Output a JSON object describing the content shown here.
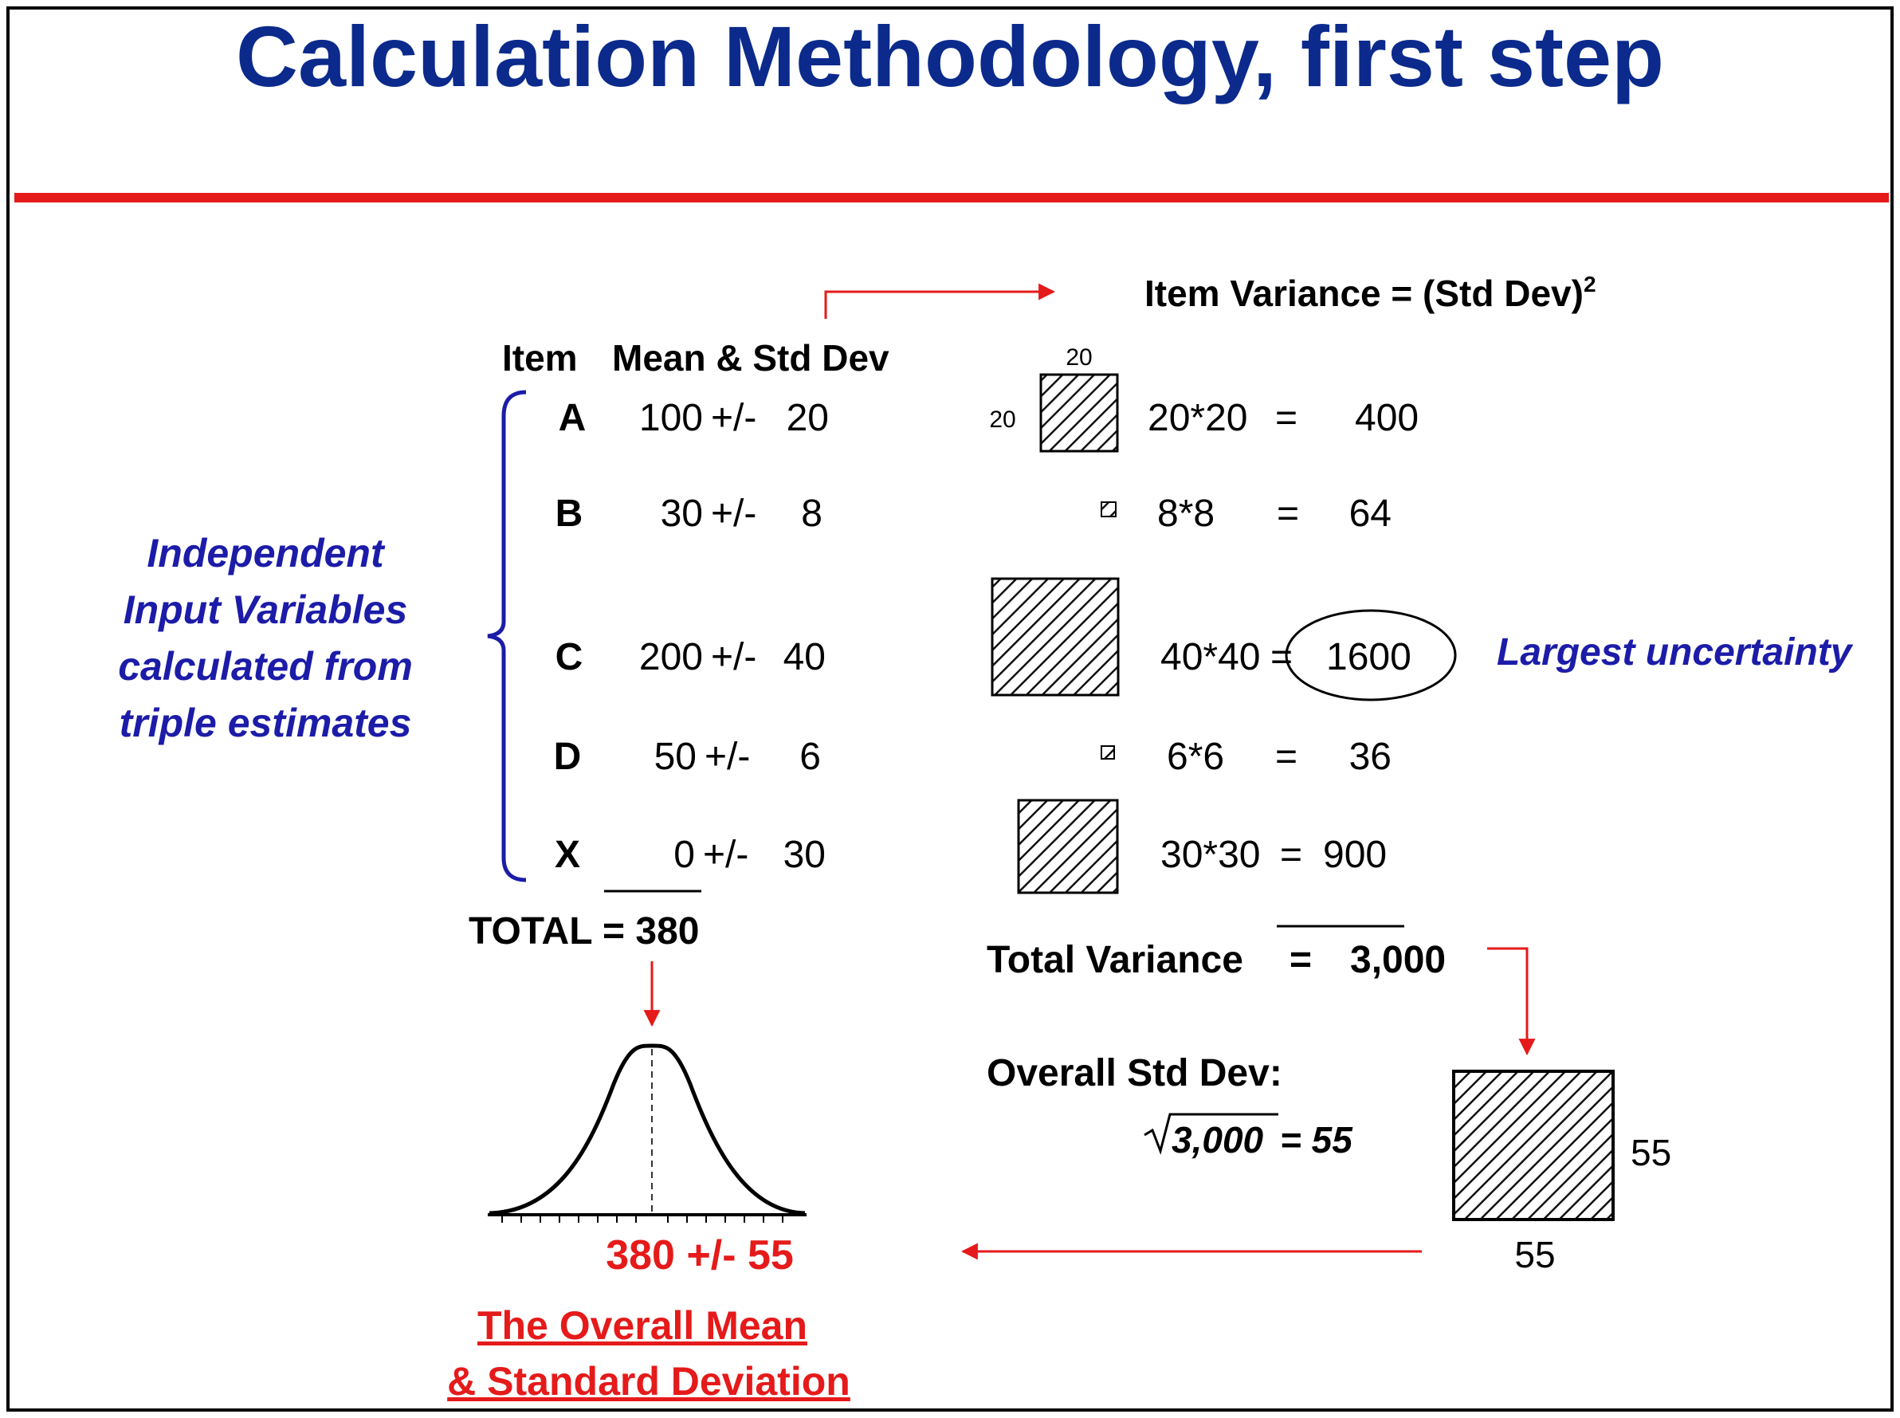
{
  "title": "Calculation Methodology, first step",
  "colors": {
    "title": "#0b2a8c",
    "accent_red": "#e51a1a",
    "label_blue": "#1c1ca8"
  },
  "side_label": [
    "Independent",
    "Input Variables",
    "calculated from",
    "triple estimates"
  ],
  "headers": {
    "item": "Item",
    "mean_std": "Mean & Std Dev",
    "variance_formula": "Item Variance = (Std Dev)",
    "variance_exp": "2"
  },
  "items": [
    {
      "name": "A",
      "mean": "100",
      "pm": "+/-",
      "sd": "20",
      "calc": "20*20",
      "eq": "=",
      "variance": "400"
    },
    {
      "name": "B",
      "mean": "30",
      "pm": "+/-",
      "sd": "8",
      "calc": "8*8",
      "eq": "=",
      "variance": "64"
    },
    {
      "name": "C",
      "mean": "200",
      "pm": "+/-",
      "sd": "40",
      "calc": "40*40",
      "eq": "=",
      "variance": "1600"
    },
    {
      "name": "D",
      "mean": "50",
      "pm": "+/-",
      "sd": "6",
      "calc": "6*6",
      "eq": "=",
      "variance": "36"
    },
    {
      "name": "X",
      "mean": "0",
      "pm": "+/-",
      "sd": "30",
      "calc": "30*30",
      "eq": "=",
      "variance": "900"
    }
  ],
  "square_a_top": "20",
  "square_a_side": "20",
  "largest_note": "Largest uncertainty",
  "total_label": "TOTAL = 380",
  "total_variance": {
    "label": "Total Variance",
    "eq": "=",
    "value": "3,000"
  },
  "overall_std": {
    "label": "Overall Std Dev:",
    "radicand": "3,000",
    "result": "= 55"
  },
  "big_square": {
    "side_label": "55",
    "bottom_label": "55"
  },
  "result": "380 +/- 55",
  "footer": [
    "The Overall Mean",
    "& Standard Deviation"
  ]
}
